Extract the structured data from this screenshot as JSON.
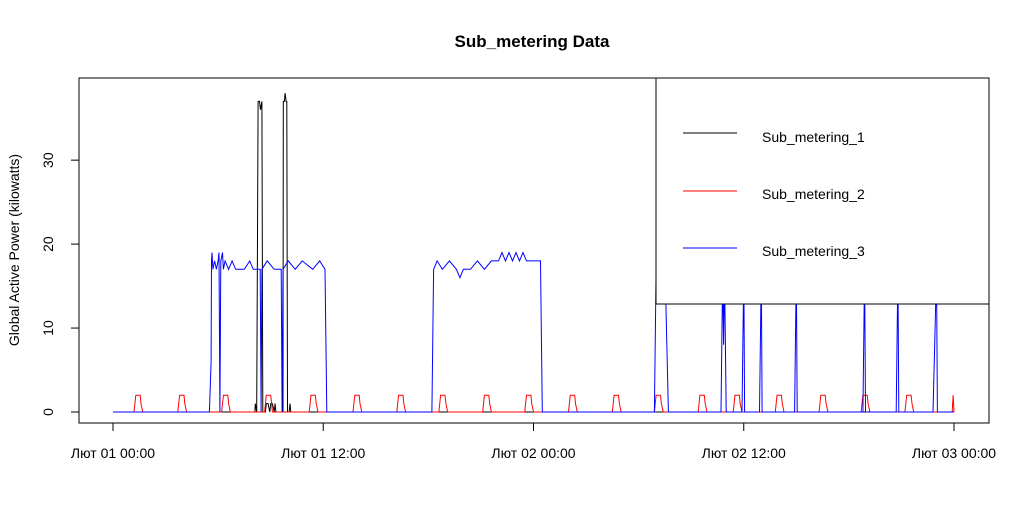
{
  "chart_data": {
    "type": "line",
    "title": "Sub_metering Data",
    "xlabel": "",
    "ylabel": "Global Active Power (kilowatts)",
    "xlim": [
      0,
      48
    ],
    "ylim": [
      0,
      38
    ],
    "x_tick_values": [
      0,
      12,
      24,
      36,
      48
    ],
    "x_tick_labels": [
      "Лют 01 00:00",
      "Лют 01 12:00",
      "Лют 02 00:00",
      "Лют 02 12:00",
      "Лют 03 00:00"
    ],
    "y_tick_values": [
      0,
      10,
      20,
      30
    ],
    "y_tick_labels": [
      "0",
      "10",
      "20",
      "30"
    ],
    "grid": false,
    "legend_position": "top-right",
    "series": [
      {
        "name": "Sub_metering_1",
        "color": "#000000",
        "points": [
          [
            0,
            0
          ],
          [
            8.1,
            0
          ],
          [
            8.12,
            1
          ],
          [
            8.2,
            0
          ],
          [
            8.28,
            37
          ],
          [
            8.36,
            37
          ],
          [
            8.42,
            36
          ],
          [
            8.5,
            37
          ],
          [
            8.55,
            0
          ],
          [
            8.7,
            0
          ],
          [
            8.75,
            1
          ],
          [
            8.85,
            1
          ],
          [
            8.95,
            0
          ],
          [
            9,
            1
          ],
          [
            9.1,
            1
          ],
          [
            9.2,
            0
          ],
          [
            9.25,
            1
          ],
          [
            9.3,
            0
          ],
          [
            9.7,
            0
          ],
          [
            9.72,
            37
          ],
          [
            9.78,
            37
          ],
          [
            9.82,
            38
          ],
          [
            9.88,
            37
          ],
          [
            9.92,
            37
          ],
          [
            9.96,
            0
          ],
          [
            10.05,
            0
          ],
          [
            10.1,
            1
          ],
          [
            10.15,
            0
          ],
          [
            48,
            0
          ]
        ]
      },
      {
        "name": "Sub_metering_2",
        "color": "#ff0000",
        "points": [
          [
            0,
            0
          ],
          [
            1.2,
            0
          ],
          [
            1.3,
            2
          ],
          [
            1.55,
            2
          ],
          [
            1.6,
            1
          ],
          [
            1.7,
            0
          ],
          [
            3.7,
            0
          ],
          [
            3.8,
            2
          ],
          [
            4.05,
            2
          ],
          [
            4.1,
            1
          ],
          [
            4.2,
            0
          ],
          [
            6.2,
            0
          ],
          [
            6.3,
            2
          ],
          [
            6.55,
            2
          ],
          [
            6.6,
            1
          ],
          [
            6.7,
            0
          ],
          [
            8.65,
            0
          ],
          [
            8.75,
            2
          ],
          [
            9.0,
            2
          ],
          [
            9.05,
            1
          ],
          [
            9.1,
            0
          ],
          [
            11.2,
            0
          ],
          [
            11.3,
            2
          ],
          [
            11.55,
            2
          ],
          [
            11.6,
            1
          ],
          [
            11.7,
            0
          ],
          [
            13.7,
            0
          ],
          [
            13.8,
            2
          ],
          [
            14.05,
            2
          ],
          [
            14.1,
            1
          ],
          [
            14.2,
            0
          ],
          [
            16.2,
            0
          ],
          [
            16.3,
            2
          ],
          [
            16.55,
            2
          ],
          [
            16.6,
            1
          ],
          [
            16.7,
            0
          ],
          [
            18.6,
            0
          ],
          [
            18.7,
            2
          ],
          [
            18.95,
            2
          ],
          [
            19.0,
            1
          ],
          [
            19.1,
            0
          ],
          [
            21.1,
            0
          ],
          [
            21.2,
            2
          ],
          [
            21.45,
            2
          ],
          [
            21.5,
            1
          ],
          [
            21.6,
            0
          ],
          [
            23.5,
            0
          ],
          [
            23.6,
            2
          ],
          [
            23.85,
            2
          ],
          [
            23.9,
            1
          ],
          [
            24.0,
            0
          ],
          [
            26.0,
            0
          ],
          [
            26.1,
            2
          ],
          [
            26.35,
            2
          ],
          [
            26.4,
            1
          ],
          [
            26.5,
            0
          ],
          [
            28.5,
            0
          ],
          [
            28.6,
            2
          ],
          [
            28.85,
            2
          ],
          [
            28.9,
            1
          ],
          [
            29.0,
            0
          ],
          [
            30.9,
            0
          ],
          [
            31.0,
            2
          ],
          [
            31.25,
            2
          ],
          [
            31.3,
            1
          ],
          [
            31.4,
            0
          ],
          [
            33.4,
            0
          ],
          [
            33.5,
            2
          ],
          [
            33.75,
            2
          ],
          [
            33.8,
            1
          ],
          [
            33.9,
            0
          ],
          [
            35.4,
            0
          ],
          [
            35.5,
            2
          ],
          [
            35.75,
            2
          ],
          [
            35.8,
            1
          ],
          [
            35.9,
            0
          ],
          [
            37.8,
            0
          ],
          [
            37.9,
            2
          ],
          [
            38.15,
            2
          ],
          [
            38.2,
            1
          ],
          [
            38.3,
            0
          ],
          [
            40.3,
            0
          ],
          [
            40.4,
            2
          ],
          [
            40.65,
            2
          ],
          [
            40.7,
            1
          ],
          [
            40.8,
            0
          ],
          [
            42.7,
            0
          ],
          [
            42.8,
            2
          ],
          [
            43.05,
            2
          ],
          [
            43.1,
            1
          ],
          [
            43.2,
            0
          ],
          [
            45.2,
            0
          ],
          [
            45.3,
            2
          ],
          [
            45.55,
            2
          ],
          [
            45.6,
            1
          ],
          [
            45.7,
            0
          ],
          [
            47.9,
            0
          ],
          [
            47.95,
            2
          ],
          [
            48,
            0
          ]
        ]
      },
      {
        "name": "Sub_metering_3",
        "color": "#0000ff",
        "points": [
          [
            0,
            0
          ],
          [
            5.5,
            0
          ],
          [
            5.6,
            6
          ],
          [
            5.62,
            18
          ],
          [
            5.65,
            19
          ],
          [
            5.7,
            17
          ],
          [
            5.8,
            18
          ],
          [
            5.9,
            17
          ],
          [
            6.0,
            18
          ],
          [
            6.05,
            19
          ],
          [
            6.1,
            0
          ],
          [
            6.15,
            18
          ],
          [
            6.25,
            19
          ],
          [
            6.3,
            17
          ],
          [
            6.4,
            18
          ],
          [
            6.6,
            17
          ],
          [
            6.8,
            18
          ],
          [
            7.0,
            17
          ],
          [
            7.5,
            17
          ],
          [
            7.8,
            18
          ],
          [
            8.0,
            17
          ],
          [
            8.4,
            17
          ],
          [
            8.45,
            0
          ],
          [
            8.5,
            17
          ],
          [
            8.8,
            18
          ],
          [
            9.2,
            17
          ],
          [
            9.6,
            17
          ],
          [
            9.65,
            0
          ],
          [
            9.7,
            17
          ],
          [
            10.0,
            18
          ],
          [
            10.4,
            17
          ],
          [
            10.8,
            18
          ],
          [
            11.4,
            17
          ],
          [
            11.8,
            18
          ],
          [
            12.1,
            17
          ],
          [
            12.2,
            0
          ],
          [
            18.2,
            0
          ],
          [
            18.3,
            17
          ],
          [
            18.5,
            18
          ],
          [
            18.8,
            17
          ],
          [
            19.2,
            18
          ],
          [
            19.6,
            17
          ],
          [
            19.8,
            16
          ],
          [
            20.0,
            17
          ],
          [
            20.4,
            17
          ],
          [
            20.8,
            18
          ],
          [
            21.2,
            17
          ],
          [
            21.6,
            18
          ],
          [
            22.0,
            18
          ],
          [
            22.2,
            19
          ],
          [
            22.4,
            18
          ],
          [
            22.6,
            19
          ],
          [
            22.8,
            18
          ],
          [
            23.0,
            19
          ],
          [
            23.2,
            18
          ],
          [
            23.4,
            19
          ],
          [
            23.6,
            18
          ],
          [
            24.2,
            18
          ],
          [
            24.4,
            18
          ],
          [
            24.5,
            0
          ],
          [
            30.9,
            0
          ],
          [
            31.0,
            17
          ],
          [
            31.1,
            18
          ],
          [
            31.3,
            17
          ],
          [
            31.5,
            18
          ],
          [
            31.7,
            0
          ],
          [
            34.7,
            0
          ],
          [
            34.8,
            17
          ],
          [
            34.85,
            8
          ],
          [
            34.9,
            17
          ],
          [
            35.0,
            0
          ],
          [
            35.9,
            0
          ],
          [
            36.0,
            17
          ],
          [
            36.05,
            0
          ],
          [
            36.9,
            0
          ],
          [
            37.0,
            17
          ],
          [
            37.05,
            0
          ],
          [
            38.9,
            0
          ],
          [
            39.0,
            17
          ],
          [
            39.05,
            0
          ],
          [
            42.8,
            0
          ],
          [
            42.9,
            17
          ],
          [
            42.95,
            0
          ],
          [
            44.7,
            0
          ],
          [
            44.8,
            17
          ],
          [
            44.85,
            0
          ],
          [
            46.8,
            0
          ],
          [
            46.9,
            8
          ],
          [
            47.0,
            17
          ],
          [
            47.05,
            0
          ],
          [
            48,
            0
          ]
        ]
      }
    ]
  }
}
